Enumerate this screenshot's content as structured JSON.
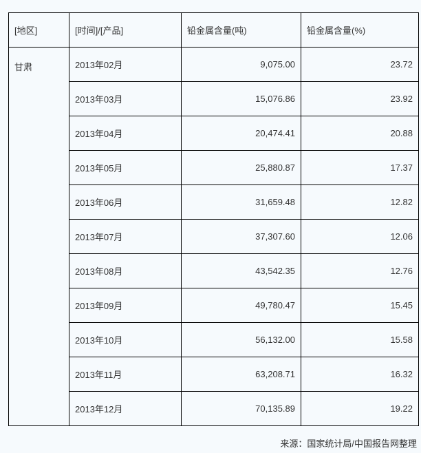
{
  "headers": [
    "[地区]",
    "[时间]/[产品]",
    "铅金属含量(吨)",
    "铅金属含量(%)"
  ],
  "region": "甘肃",
  "rows": [
    {
      "time": "2013年02月",
      "tons": "9,075.00",
      "percent": "23.72"
    },
    {
      "time": "2013年03月",
      "tons": "15,076.86",
      "percent": "23.92"
    },
    {
      "time": "2013年04月",
      "tons": "20,474.41",
      "percent": "20.88"
    },
    {
      "time": "2013年05月",
      "tons": "25,880.87",
      "percent": "17.37"
    },
    {
      "time": "2013年06月",
      "tons": "31,659.48",
      "percent": "12.82"
    },
    {
      "time": "2013年07月",
      "tons": "37,307.60",
      "percent": "12.06"
    },
    {
      "time": "2013年08月",
      "tons": "43,542.35",
      "percent": "12.76"
    },
    {
      "time": "2013年09月",
      "tons": "49,780.47",
      "percent": "15.45"
    },
    {
      "time": "2013年10月",
      "tons": "56,132.00",
      "percent": "15.58"
    },
    {
      "time": "2013年11月",
      "tons": "63,208.71",
      "percent": "16.32"
    },
    {
      "time": "2013年12月",
      "tons": "70,135.89",
      "percent": "19.22"
    }
  ],
  "source": "来源：国家统计局/中国报告网整理"
}
